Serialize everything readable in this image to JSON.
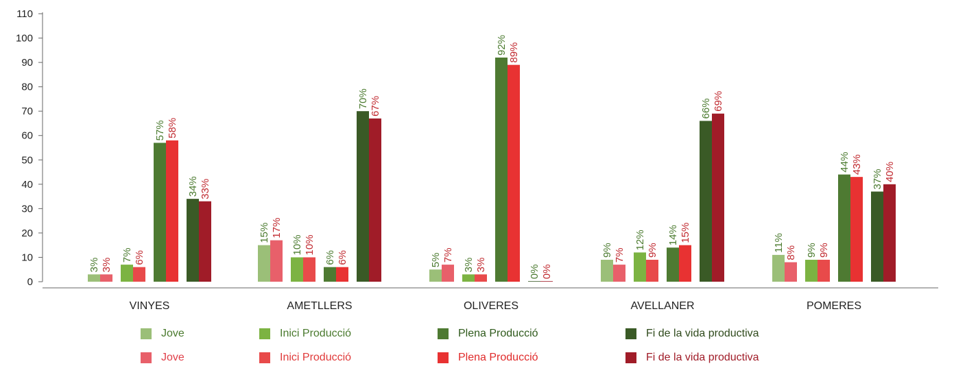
{
  "chart_data": {
    "type": "bar",
    "categories": [
      "VINYES",
      "AMETLLERS",
      "OLIVERES",
      "AVELLANER",
      "POMERES"
    ],
    "ylim": [
      0,
      110
    ],
    "yticks": [
      0,
      10,
      20,
      30,
      40,
      50,
      60,
      70,
      80,
      90,
      100,
      110
    ],
    "grid": false,
    "legend_placement": "bottom",
    "groups": [
      {
        "series": [
          {
            "name": "Jove",
            "color": "#9bbf78",
            "label_color": "#4a7a2e",
            "values": [
              3,
              15,
              5,
              9,
              11
            ],
            "labels": [
              "3%",
              "15%",
              "5%",
              "9%",
              "11%"
            ]
          },
          {
            "name": "Jove",
            "color": "#e8606a",
            "label_color": "#c0282e",
            "values": [
              3,
              17,
              7,
              7,
              8
            ],
            "labels": [
              "3%",
              "17%",
              "7%",
              "7%",
              "8%"
            ]
          }
        ]
      },
      {
        "series": [
          {
            "name": "Inici Producció",
            "color": "#7cb342",
            "label_color": "#4a7a2e",
            "values": [
              7,
              10,
              3,
              12,
              9
            ],
            "labels": [
              "7%",
              "10%",
              "3%",
              "12%",
              "9%"
            ]
          },
          {
            "name": "Inici Producció",
            "color": "#e84a4a",
            "label_color": "#c0282e",
            "values": [
              6,
              10,
              3,
              9,
              9
            ],
            "labels": [
              "6%",
              "10%",
              "3%",
              "9%",
              "9%"
            ]
          }
        ]
      },
      {
        "series": [
          {
            "name": "Plena Producció",
            "color": "#4e7a32",
            "label_color": "#4a7a2e",
            "values": [
              57,
              6,
              92,
              14,
              44
            ],
            "labels": [
              "57%",
              "6%",
              "92%",
              "14%",
              "44%"
            ]
          },
          {
            "name": "Plena Producció",
            "color": "#e83232",
            "label_color": "#c0282e",
            "values": [
              58,
              6,
              89,
              15,
              43
            ],
            "labels": [
              "58%",
              "6%",
              "89%",
              "15%",
              "43%"
            ]
          }
        ]
      },
      {
        "series": [
          {
            "name": "Fi de la vida productiva",
            "color": "#3a5a26",
            "label_color": "#4a7a2e",
            "values": [
              34,
              70,
              0,
              66,
              37
            ],
            "labels": [
              "34%",
              "70%",
              "0%",
              "66%",
              "37%"
            ]
          },
          {
            "name": "Fi de la vida productiva",
            "color": "#a01c28",
            "label_color": "#c0282e",
            "values": [
              33,
              67,
              0,
              69,
              40
            ],
            "labels": [
              "33%",
              "67%",
              "0%",
              "69%",
              "40%"
            ]
          }
        ]
      }
    ]
  },
  "legend": {
    "row1": [
      {
        "label": "Jove",
        "color": "#9bbf78",
        "text_color": "#4a7a2e"
      },
      {
        "label": "Inici Producció",
        "color": "#7cb342",
        "text_color": "#4a7a2e"
      },
      {
        "label": "Plena Producció",
        "color": "#4e7a32",
        "text_color": "#2f5a1c"
      },
      {
        "label": "Fi de la vida productiva",
        "color": "#3a5a26",
        "text_color": "#2f4a1c"
      }
    ],
    "row2": [
      {
        "label": "Jove",
        "color": "#e8606a",
        "text_color": "#e0404a"
      },
      {
        "label": "Inici Producció",
        "color": "#e84a4a",
        "text_color": "#e03a3a"
      },
      {
        "label": "Plena Producció",
        "color": "#e83232",
        "text_color": "#e02a2a"
      },
      {
        "label": "Fi de la vida productiva",
        "color": "#a01c28",
        "text_color": "#a01c28"
      }
    ]
  }
}
